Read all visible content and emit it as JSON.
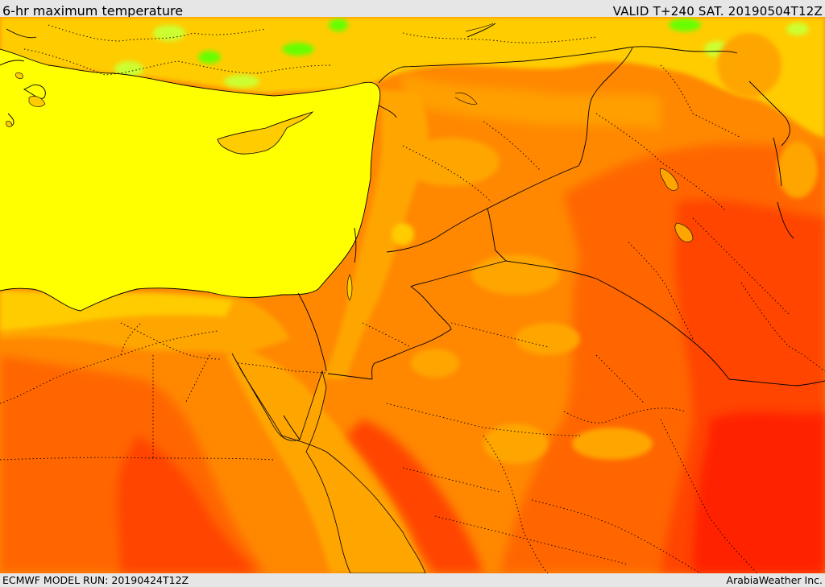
{
  "header": {
    "title": "6-hr maximum temperature",
    "valid": "VALID T+240 SAT. 20190504T12Z"
  },
  "footer": {
    "model_run": "ECMWF MODEL RUN: 20190424T12Z",
    "provider": "ArabiaWeather Inc."
  },
  "palette": {
    "sea": "#ffff00",
    "cool_green": "#66ff00",
    "light_green": "#ccff33",
    "yellow_orange": "#ffcc00",
    "light_orange": "#ffa500",
    "orange": "#ff8800",
    "dark_orange": "#ff6600",
    "red_orange": "#ff4400",
    "red": "#ff2200"
  }
}
